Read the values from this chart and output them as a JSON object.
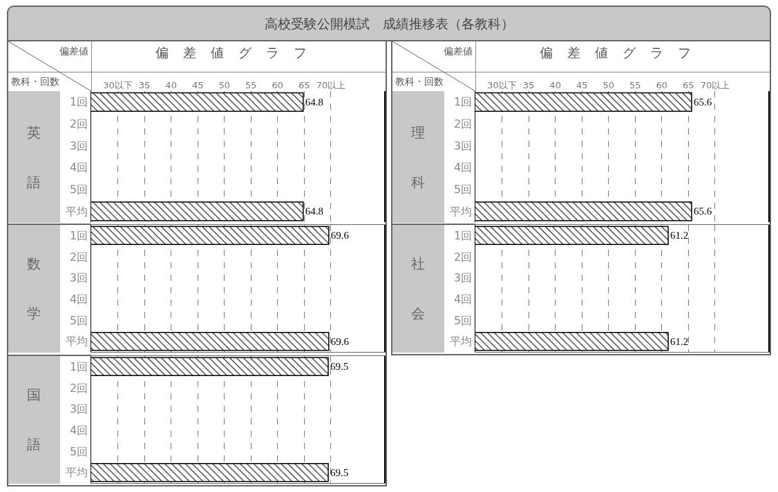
{
  "chart_data": [
    {
      "type": "bar",
      "orientation": "horizontal",
      "title": "高校受験公開模試　成績推移表（各教科）",
      "xlabel": "偏差値グラフ",
      "ylabel": "英語",
      "annotations": [
        "偏差値",
        "教科・回数"
      ],
      "categories": [
        "1回",
        "2回",
        "3回",
        "4回",
        "5回",
        "平均"
      ],
      "values": [
        64.8,
        null,
        null,
        null,
        null,
        64.8
      ],
      "color": "#000000",
      "data_labels": true,
      "grid": "x",
      "xlim": [
        25,
        80
      ],
      "xticks": [
        {
          "value": 30,
          "label": "30以下"
        },
        35,
        40,
        45,
        50,
        55,
        60,
        65,
        {
          "value": 70,
          "label": "70以上"
        }
      ]
    },
    {
      "type": "bar",
      "orientation": "horizontal",
      "xlabel": "偏差値グラフ",
      "ylabel": "理科",
      "annotations": [
        "偏差値",
        "教科・回数"
      ],
      "categories": [
        "1回",
        "2回",
        "3回",
        "4回",
        "5回",
        "平均"
      ],
      "values": [
        65.6,
        null,
        null,
        null,
        null,
        65.6
      ],
      "color": "#000000",
      "data_labels": true,
      "grid": "x",
      "xlim": [
        25,
        80
      ],
      "xticks": [
        {
          "value": 30,
          "label": "30以下"
        },
        35,
        40,
        45,
        50,
        55,
        60,
        65,
        {
          "value": 70,
          "label": "70以上"
        }
      ]
    },
    {
      "type": "bar",
      "orientation": "horizontal",
      "ylabel": "数学",
      "categories": [
        "1回",
        "2回",
        "3回",
        "4回",
        "5回",
        "平均"
      ],
      "values": [
        69.6,
        null,
        null,
        null,
        null,
        69.6
      ],
      "color": "#000000",
      "data_labels": true,
      "grid": "x",
      "tick_labels": "y",
      "xlim": [
        25,
        80
      ],
      "xticks": [
        {
          "value": 30,
          "label": null
        },
        {
          "value": 35,
          "label": null
        },
        {
          "value": 40,
          "label": null
        },
        {
          "value": 45,
          "label": null
        },
        {
          "value": 50,
          "label": null
        },
        {
          "value": 55,
          "label": null
        },
        {
          "value": 60,
          "label": null
        },
        {
          "value": 65,
          "label": null
        },
        {
          "value": 70,
          "label": null
        }
      ]
    },
    {
      "type": "bar",
      "orientation": "horizontal",
      "ylabel": "社会",
      "categories": [
        "1回",
        "2回",
        "3回",
        "4回",
        "5回",
        "平均"
      ],
      "values": [
        61.2,
        null,
        null,
        null,
        null,
        61.2
      ],
      "color": "#000000",
      "data_labels": true,
      "grid": "x",
      "tick_labels": "y",
      "xlim": [
        25,
        80
      ],
      "xticks": [
        {
          "value": 30,
          "label": null
        },
        {
          "value": 35,
          "label": null
        },
        {
          "value": 40,
          "label": null
        },
        {
          "value": 45,
          "label": null
        },
        {
          "value": 50,
          "label": null
        },
        {
          "value": 55,
          "label": null
        },
        {
          "value": 60,
          "label": null
        },
        {
          "value": 65,
          "label": null
        },
        {
          "value": 70,
          "label": null
        }
      ]
    },
    {
      "type": "bar",
      "orientation": "horizontal",
      "ylabel": "国語",
      "categories": [
        "1回",
        "2回",
        "3回",
        "4回",
        "5回",
        "平均"
      ],
      "values": [
        69.5,
        null,
        null,
        null,
        null,
        69.5
      ],
      "color": "#000000",
      "data_labels": true,
      "grid": "x",
      "tick_labels": "y",
      "xlim": [
        25,
        80
      ],
      "xticks": [
        {
          "value": 30,
          "label": null
        },
        {
          "value": 35,
          "label": null
        },
        {
          "value": 40,
          "label": null
        },
        {
          "value": 45,
          "label": null
        },
        {
          "value": 50,
          "label": null
        },
        {
          "value": 55,
          "label": null
        },
        {
          "value": 60,
          "label": null
        },
        {
          "value": 65,
          "label": null
        },
        {
          "value": 70,
          "label": null
        }
      ]
    }
  ]
}
